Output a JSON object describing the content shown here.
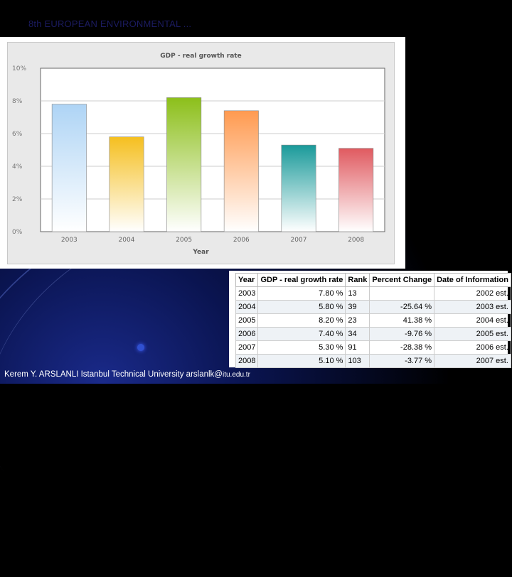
{
  "slide": {
    "title": "8th EUROPEAN ENVIRONMENTAL ..."
  },
  "chart_data": {
    "type": "bar",
    "title": "GDP - real growth rate",
    "xlabel": "Year",
    "ylabel": "",
    "categories": [
      "2003",
      "2004",
      "2005",
      "2006",
      "2007",
      "2008"
    ],
    "values": [
      7.8,
      5.8,
      8.2,
      7.4,
      5.3,
      5.1
    ],
    "ylim": [
      0,
      10
    ],
    "yticks": [
      "0%",
      "2%",
      "4%",
      "6%",
      "8%",
      "10%"
    ],
    "colors": [
      "#aed4f5",
      "#f5bf1f",
      "#8cbf1a",
      "#ff9a50",
      "#1a9a9a",
      "#e05a60"
    ],
    "grid": true,
    "legend": "none"
  },
  "table": {
    "headers": [
      "Year",
      "GDP - real growth rate",
      "Rank",
      "Percent Change",
      "Date of Information"
    ],
    "rows": [
      [
        "2003",
        "7.80 %",
        "13",
        "",
        "2002 est."
      ],
      [
        "2004",
        "5.80 %",
        "39",
        "-25.64 %",
        "2003 est."
      ],
      [
        "2005",
        "8.20 %",
        "23",
        "41.38 %",
        "2004 est."
      ],
      [
        "2006",
        "7.40 %",
        "34",
        "-9.76 %",
        "2005 est."
      ],
      [
        "2007",
        "5.30 %",
        "91",
        "-28.38 %",
        "2006 est."
      ],
      [
        "2008",
        "5.10 %",
        "103",
        "-3.77 %",
        "2007 est."
      ]
    ]
  },
  "footer": {
    "text": "Kerem Y. ARSLANLI Istanbul Technical University arslanlk@",
    "mail": "itu.edu.tr"
  }
}
